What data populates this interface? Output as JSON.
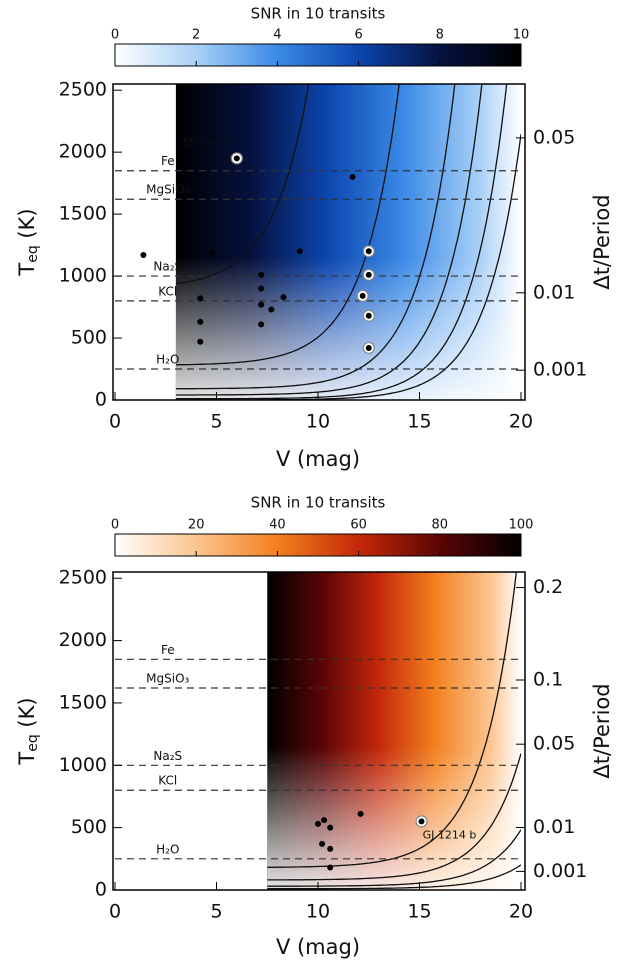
{
  "chart_data": [
    {
      "type": "heatmap",
      "colorbar_title": "SNR in 10 transits",
      "colorbar_lim": [
        0,
        10
      ],
      "colorbar_ticks": [
        0,
        2,
        4,
        6,
        8,
        10
      ],
      "colormap": [
        "#ffffff",
        "#a9d0f7",
        "#3a8ae6",
        "#0d46b0",
        "#06123f",
        "#000000"
      ],
      "coverage_xmin": 3,
      "xlabel": "V (mag)",
      "ylabel": "T",
      "ylabel_sub": "eq",
      "ylabel_unit": " (K)",
      "y2label": "Δt/Period",
      "xlim": [
        0,
        20
      ],
      "xticks": [
        0,
        5,
        10,
        15,
        20
      ],
      "ylim": [
        0,
        2550
      ],
      "yticks": [
        0,
        500,
        1000,
        1500,
        2000,
        2500
      ],
      "y2lim": [
        0,
        0.07
      ],
      "y2scale": "power",
      "y2power": 1.8,
      "y2ticks": [
        0.001,
        0.01,
        0.05
      ],
      "condensation": [
        {
          "label": "Fe",
          "value": 1850
        },
        {
          "label": "MgSiO₃",
          "value": 1620
        },
        {
          "label": "Na₂S",
          "value": 1000
        },
        {
          "label": "KCl",
          "value": 800
        },
        {
          "label": "H₂O",
          "value": 250
        }
      ],
      "contours": [
        {
          "vtop": 10.3,
          "floor": 900
        },
        {
          "vtop": 14.2,
          "floor": 280
        },
        {
          "vtop": 16.8,
          "floor": 90
        },
        {
          "vtop": 18.1,
          "floor": 40
        },
        {
          "vtop": 19.3,
          "floor": 10
        },
        {
          "vtop": 20.3,
          "floor": 0
        }
      ],
      "points": {
        "x": [
          6.0,
          1.4,
          4.8,
          4.2,
          4.2,
          4.2,
          7.2,
          7.2,
          7.2,
          7.2,
          7.7,
          8.3,
          9.1,
          11.7,
          12.5,
          12.5,
          12.2,
          12.5,
          12.5
        ],
        "y": [
          1950,
          1170,
          1190,
          820,
          630,
          470,
          1010,
          900,
          770,
          610,
          730,
          830,
          1200,
          1800,
          1200,
          1010,
          840,
          680,
          420
        ],
        "circled": [
          true,
          false,
          false,
          false,
          false,
          false,
          false,
          false,
          false,
          false,
          false,
          false,
          false,
          false,
          true,
          true,
          true,
          true,
          true
        ],
        "labels": [
          "55 Cnc e",
          null,
          null,
          null,
          null,
          null,
          null,
          null,
          null,
          null,
          null,
          null,
          null,
          null,
          null,
          null,
          null,
          null,
          null
        ]
      }
    },
    {
      "type": "heatmap",
      "colorbar_title": "SNR in 10 transits",
      "colorbar_lim": [
        0,
        100
      ],
      "colorbar_ticks": [
        0,
        20,
        40,
        60,
        80,
        100
      ],
      "colormap": [
        "#ffffff",
        "#fcc58f",
        "#f2801f",
        "#c4280a",
        "#5c0505",
        "#000000"
      ],
      "coverage_xmin": 7.5,
      "xlabel": "V (mag)",
      "ylabel": "T",
      "ylabel_sub": "eq",
      "ylabel_unit": " (K)",
      "y2label": "Δt/Period",
      "xlim": [
        0,
        20
      ],
      "xticks": [
        0,
        5,
        10,
        15,
        20
      ],
      "ylim": [
        0,
        2550
      ],
      "yticks": [
        0,
        500,
        1000,
        1500,
        2000,
        2500
      ],
      "y2lim": [
        0,
        0.22
      ],
      "y2scale": "power",
      "y2power": 1.9,
      "y2ticks": [
        0.001,
        0.01,
        0.05,
        0.1,
        0.2
      ],
      "condensation": [
        {
          "label": "Fe",
          "value": 1850
        },
        {
          "label": "MgSiO₃",
          "value": 1620
        },
        {
          "label": "Na₂S",
          "value": 1000
        },
        {
          "label": "KCl",
          "value": 800
        },
        {
          "label": "H₂O",
          "value": 250
        }
      ],
      "contours": [
        {
          "vtop": 19.9,
          "floor": 180
        },
        {
          "vtop": 21.6,
          "floor": 80
        },
        {
          "vtop": 23.0,
          "floor": 30
        },
        {
          "vtop": 24.5,
          "floor": 10
        }
      ],
      "points": {
        "x": [
          10.0,
          10.3,
          10.6,
          10.2,
          10.6,
          10.6,
          12.1,
          15.1
        ],
        "y": [
          530,
          560,
          500,
          370,
          330,
          180,
          610,
          550
        ],
        "circled": [
          false,
          false,
          false,
          false,
          false,
          false,
          false,
          true
        ],
        "labels": [
          null,
          null,
          null,
          null,
          null,
          null,
          null,
          "GJ 1214 b"
        ]
      }
    }
  ]
}
